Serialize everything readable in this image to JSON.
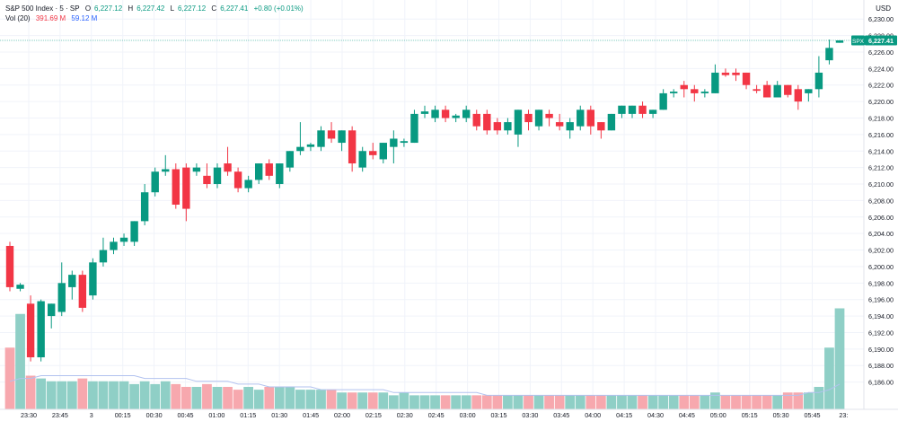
{
  "legend": {
    "symbol": "S&P 500 Index · 5 · SP",
    "o_label": "O",
    "o_value": "6,227.12",
    "h_label": "H",
    "h_value": "6,227.42",
    "l_label": "L",
    "l_value": "6,227.12",
    "c_label": "C",
    "c_value": "6,227.41",
    "change": "+0.80 (+0.01%)",
    "vol_label": "Vol (20)",
    "vol_value1": "391.69 M",
    "vol_value2": "59.12 M"
  },
  "currency": "USD",
  "price_tag": {
    "symbol": "SPX",
    "value": "6,227.41"
  },
  "colors": {
    "up": "#089981",
    "down": "#f23645",
    "vol_up": "#8fcfc6",
    "vol_down": "#f7a8ae",
    "grid": "#f0f3fa",
    "ma": "#b2c2ef"
  },
  "chart_data": {
    "type": "candlestick",
    "ylim": [
      6184,
      6231
    ],
    "y_ticks": [
      "6,186.00",
      "6,188.00",
      "6,190.00",
      "6,192.00",
      "6,194.00",
      "6,196.00",
      "6,198.00",
      "6,200.00",
      "6,202.00",
      "6,204.00",
      "6,206.00",
      "6,208.00",
      "6,210.00",
      "6,212.00",
      "6,214.00",
      "6,216.00",
      "6,218.00",
      "6,220.00",
      "6,222.00",
      "6,224.00",
      "6,226.00",
      "6,228.00",
      "6,230.00"
    ],
    "x_ticks": [
      "23:30",
      "23:45",
      "3",
      "00:15",
      "00:30",
      "00:45",
      "01:00",
      "01:15",
      "01:30",
      "01:45",
      "02:00",
      "02:15",
      "02:30",
      "02:45",
      "03:00",
      "03:15",
      "03:30",
      "03:45",
      "04:00",
      "04:15",
      "04:30",
      "04:45",
      "05:00",
      "05:15",
      "05:30",
      "05:45",
      "23:"
    ],
    "candles": [
      [
        6202.5,
        6203.0,
        6197.0,
        6197.5
      ],
      [
        6197.3,
        6198.0,
        6197.0,
        6197.8
      ],
      [
        6195.5,
        6196.5,
        6188.5,
        6189.0
      ],
      [
        6189.0,
        6196.0,
        6188.5,
        6195.8
      ],
      [
        6194.0,
        6195.5,
        6192.5,
        6195.5
      ],
      [
        6194.5,
        6200.5,
        6194.0,
        6198.0
      ],
      [
        6197.5,
        6199.5,
        6196.0,
        6199.0
      ],
      [
        6199.0,
        6199.5,
        6194.5,
        6195.0
      ],
      [
        6196.5,
        6201.0,
        6196.0,
        6200.5
      ],
      [
        6200.5,
        6203.5,
        6200.0,
        6202.0
      ],
      [
        6202.0,
        6203.5,
        6201.5,
        6203.0
      ],
      [
        6203.0,
        6204.0,
        6202.5,
        6203.5
      ],
      [
        6203.0,
        6205.5,
        6202.5,
        6205.5
      ],
      [
        6205.5,
        6210.0,
        6205.0,
        6209.0
      ],
      [
        6209.0,
        6212.0,
        6208.5,
        6211.5
      ],
      [
        6211.5,
        6213.5,
        6211.0,
        6211.8
      ],
      [
        6211.8,
        6212.5,
        6207.0,
        6207.5
      ],
      [
        6212.0,
        6212.5,
        6205.5,
        6207.0
      ],
      [
        6211.5,
        6212.5,
        6211.0,
        6212.0
      ],
      [
        6211.0,
        6212.5,
        6209.5,
        6210.0
      ],
      [
        6210.0,
        6212.5,
        6209.5,
        6212.0
      ],
      [
        6212.5,
        6214.5,
        6211.0,
        6211.5
      ],
      [
        6211.5,
        6212.0,
        6209.0,
        6209.5
      ],
      [
        6209.5,
        6211.0,
        6209.0,
        6210.5
      ],
      [
        6210.5,
        6212.5,
        6210.0,
        6212.5
      ],
      [
        6212.5,
        6213.0,
        6210.5,
        6211.0
      ],
      [
        6210.0,
        6212.5,
        6209.5,
        6212.5
      ],
      [
        6212.0,
        6214.0,
        6211.5,
        6214.0
      ],
      [
        6214.0,
        6217.5,
        6213.5,
        6214.5
      ],
      [
        6214.5,
        6215.0,
        6214.0,
        6214.8
      ],
      [
        6214.5,
        6217.0,
        6214.0,
        6216.5
      ],
      [
        6216.5,
        6217.5,
        6215.0,
        6215.5
      ],
      [
        6215.0,
        6216.5,
        6214.0,
        6216.5
      ],
      [
        6216.5,
        6217.0,
        6211.5,
        6212.5
      ],
      [
        6212.0,
        6214.5,
        6211.5,
        6214.0
      ],
      [
        6214.0,
        6215.0,
        6213.0,
        6213.5
      ],
      [
        6213.0,
        6215.0,
        6212.5,
        6215.0
      ],
      [
        6214.5,
        6216.5,
        6212.5,
        6215.5
      ],
      [
        6215.0,
        6215.5,
        6214.5,
        6215.2
      ],
      [
        6215.0,
        6219.0,
        6215.0,
        6218.5
      ],
      [
        6218.5,
        6219.5,
        6218.0,
        6218.8
      ],
      [
        6218.0,
        6219.5,
        6217.5,
        6219.0
      ],
      [
        6219.0,
        6219.5,
        6217.5,
        6218.0
      ],
      [
        6218.0,
        6218.5,
        6217.5,
        6218.3
      ],
      [
        6218.0,
        6219.5,
        6217.5,
        6219.0
      ],
      [
        6218.5,
        6219.0,
        6216.5,
        6217.0
      ],
      [
        6218.5,
        6219.0,
        6216.0,
        6216.5
      ],
      [
        6217.5,
        6218.0,
        6216.0,
        6216.5
      ],
      [
        6216.5,
        6218.0,
        6216.0,
        6217.5
      ],
      [
        6216.0,
        6219.0,
        6214.5,
        6219.0
      ],
      [
        6218.5,
        6219.0,
        6216.5,
        6217.5
      ],
      [
        6217.0,
        6219.0,
        6216.5,
        6219.0
      ],
      [
        6218.5,
        6219.0,
        6217.0,
        6218.0
      ],
      [
        6217.5,
        6218.5,
        6216.5,
        6217.0
      ],
      [
        6216.5,
        6218.0,
        6215.5,
        6217.5
      ],
      [
        6217.0,
        6219.5,
        6216.5,
        6219.0
      ],
      [
        6219.0,
        6219.5,
        6216.0,
        6217.0
      ],
      [
        6217.5,
        6217.5,
        6215.5,
        6216.5
      ],
      [
        6216.5,
        6218.5,
        6216.5,
        6218.5
      ],
      [
        6218.5,
        6219.5,
        6218.0,
        6219.5
      ],
      [
        6218.5,
        6219.5,
        6218.0,
        6219.5
      ],
      [
        6219.5,
        6220.0,
        6218.0,
        6218.5
      ],
      [
        6218.5,
        6219.0,
        6218.0,
        6219.0
      ],
      [
        6219.0,
        6221.5,
        6219.0,
        6221.0
      ],
      [
        6221.0,
        6221.5,
        6220.5,
        6221.2
      ],
      [
        6222.0,
        6222.5,
        6220.5,
        6221.5
      ],
      [
        6221.5,
        6222.0,
        6220.0,
        6221.0
      ],
      [
        6221.0,
        6221.5,
        6220.5,
        6221.2
      ],
      [
        6221.0,
        6224.5,
        6221.0,
        6223.5
      ],
      [
        6223.5,
        6224.0,
        6223.0,
        6223.2
      ],
      [
        6223.5,
        6224.0,
        6222.5,
        6223.2
      ],
      [
        6223.5,
        6223.5,
        6221.5,
        6222.0
      ],
      [
        6221.5,
        6222.0,
        6221.0,
        6221.3
      ],
      [
        6222.0,
        6222.5,
        6220.5,
        6220.5
      ],
      [
        6220.5,
        6222.5,
        6220.5,
        6222.0
      ],
      [
        6222.0,
        6222.0,
        6220.5,
        6220.8
      ],
      [
        6221.5,
        6222.0,
        6219.0,
        6220.0
      ],
      [
        6221.0,
        6221.5,
        6220.0,
        6221.5
      ],
      [
        6221.5,
        6225.5,
        6220.5,
        6223.5
      ],
      [
        6225.0,
        6227.5,
        6224.5,
        6226.5
      ],
      [
        6227.12,
        6227.42,
        6227.12,
        6227.41
      ]
    ],
    "volume": [
      22,
      34,
      12,
      11,
      10,
      10,
      10,
      11,
      10,
      10,
      10,
      10,
      9,
      10,
      9,
      10,
      9,
      8,
      8,
      9,
      8,
      8,
      7,
      8,
      7,
      8,
      8,
      8,
      7,
      7,
      7,
      7,
      6,
      6,
      6,
      6,
      6,
      5,
      6,
      5,
      5,
      5,
      5,
      5,
      5,
      5,
      5,
      5,
      5,
      5,
      5,
      5,
      5,
      5,
      5,
      5,
      5,
      5,
      5,
      5,
      5,
      5,
      5,
      5,
      5,
      5,
      5,
      5,
      6,
      5,
      5,
      5,
      5,
      5,
      5,
      6,
      6,
      6,
      8,
      22,
      36
    ],
    "vol_ma": [
      10,
      11,
      11,
      12,
      12,
      12,
      12,
      12,
      12,
      12,
      12,
      12,
      12,
      11,
      11,
      11,
      11,
      11,
      10,
      10,
      10,
      10,
      9,
      9,
      9,
      8,
      8,
      8,
      8,
      8,
      7,
      7,
      7,
      7,
      7,
      7,
      7,
      6,
      6,
      6,
      6,
      6,
      6,
      6,
      6,
      6,
      5,
      5,
      5,
      5,
      5,
      5,
      5,
      5,
      5,
      5,
      5,
      5,
      5,
      5,
      5,
      5,
      5,
      5,
      5,
      5,
      5,
      5,
      5,
      5,
      5,
      5,
      5,
      5,
      5,
      5,
      5,
      6,
      6,
      7,
      9
    ]
  }
}
